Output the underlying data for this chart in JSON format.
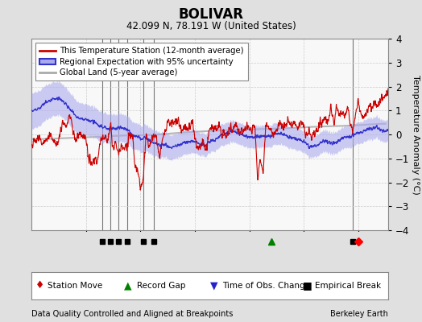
{
  "title": "BOLIVAR",
  "subtitle": "42.099 N, 78.191 W (United States)",
  "ylabel": "Temperature Anomaly (°C)",
  "xlabel_note": "Data Quality Controlled and Aligned at Breakpoints",
  "credit": "Berkeley Earth",
  "ylim": [
    -4,
    4
  ],
  "xlim": [
    1880,
    2011
  ],
  "xticks": [
    1900,
    1920,
    1940,
    1960,
    1980,
    2000
  ],
  "yticks": [
    -4,
    -3,
    -2,
    -1,
    0,
    1,
    2,
    3,
    4
  ],
  "bg_color": "#e0e0e0",
  "plot_bg_color": "#f0f0f0",
  "grid_color": "#dddddd",
  "station_color": "#cc0000",
  "regional_color": "#3333cc",
  "regional_fill_color": "#aaaaee",
  "global_color": "#aaaaaa",
  "break_line_color": "#555555",
  "legend_items": [
    "This Temperature Station (12-month average)",
    "Regional Expectation with 95% uncertainty",
    "Global Land (5-year average)"
  ],
  "markers": {
    "empirical_breaks": [
      1906,
      1909,
      1912,
      1915,
      1921,
      1925,
      1998
    ],
    "record_gap": [
      1968
    ],
    "station_move": [
      2000
    ],
    "time_obs_change": []
  },
  "seed": 42
}
